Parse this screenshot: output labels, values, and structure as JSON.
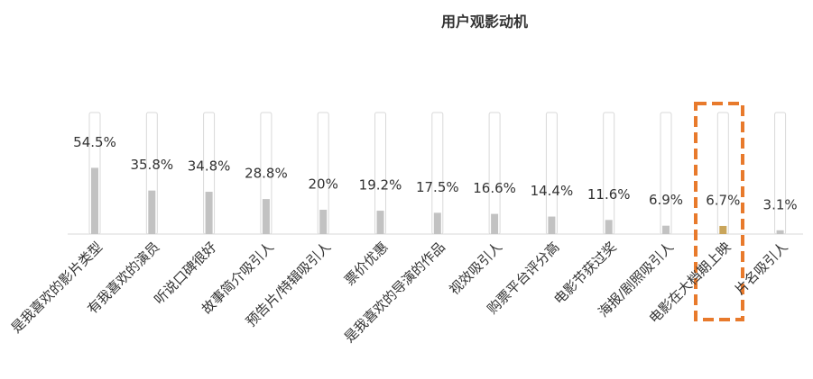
{
  "chart_data": {
    "type": "bar",
    "title": "用户观影动机",
    "categories": [
      "是我喜欢的影片类型",
      "有我喜欢的演员",
      "听说口碑很好",
      "故事简介吸引人",
      "预告片/特辑吸引人",
      "票价优惠",
      "是我喜欢的导演的作品",
      "视效吸引人",
      "购票平台评分高",
      "电影节获过奖",
      "海报/剧照吸引人",
      "电影在大档期上映",
      "片名吸引人"
    ],
    "values": [
      54.5,
      35.8,
      34.8,
      28.8,
      20,
      19.2,
      17.5,
      16.6,
      14.4,
      11.6,
      6.9,
      6.7,
      3.1
    ],
    "value_labels": [
      "54.5%",
      "35.8%",
      "34.8%",
      "28.8%",
      "20%",
      "19.2%",
      "17.5%",
      "16.6%",
      "14.4%",
      "11.6%",
      "6.9%",
      "6.7%",
      "3.1%"
    ],
    "colors": [
      "#c2c2c2",
      "#c2c2c2",
      "#c2c2c2",
      "#c2c2c2",
      "#c2c2c2",
      "#c2c2c2",
      "#c2c2c2",
      "#c2c2c2",
      "#c2c2c2",
      "#c2c2c2",
      "#c2c2c2",
      "#c9a55a",
      "#c2c2c2"
    ],
    "ylim": [
      0,
      100
    ]
  }
}
